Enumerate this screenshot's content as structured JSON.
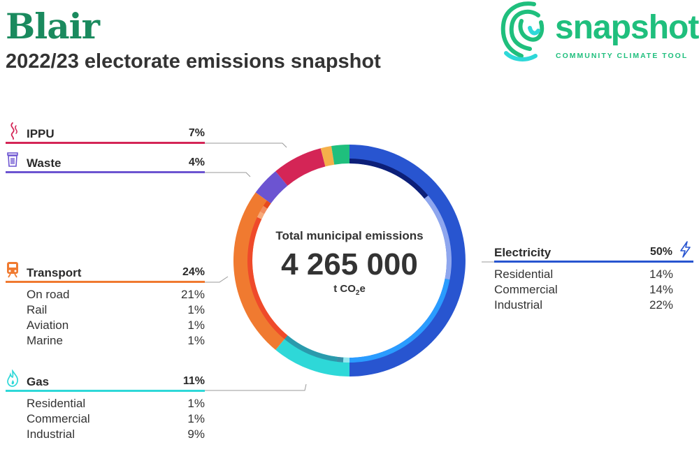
{
  "header": {
    "title": "Blair",
    "subtitle": "2022/23 electorate emissions snapshot"
  },
  "logo": {
    "wordmark": "snapshot",
    "tagline": "COMMUNITY CLIMATE TOOL"
  },
  "center": {
    "label": "Total municipal emissions",
    "value": "4 265 000",
    "unit_prefix": "t CO",
    "unit_subscript": "2",
    "unit_suffix": "e"
  },
  "colors": {
    "brand": "#1fbf7d",
    "title": "#1a8a5e",
    "electricity": "#2855d0",
    "gas": "#2ed8d8",
    "transport": "#f07a30",
    "waste": "#6c54d1",
    "ippu": "#d42556",
    "agriculture": "#f5b04a",
    "other": "#1fbf7d"
  },
  "icons": {
    "ippu": "smoke-icon",
    "waste": "trash-bin-icon",
    "transport": "train-icon",
    "gas": "flame-icon",
    "electricity": "lightning-bolt-icon"
  },
  "chart_data": {
    "type": "donut",
    "total": 4265000,
    "unit": "t CO2e",
    "series": [
      {
        "name": "Electricity",
        "value_label": "50%",
        "percent": 50,
        "breakdown": [
          {
            "name": "Residential",
            "value_label": "14%",
            "percent": 14
          },
          {
            "name": "Commercial",
            "value_label": "14%",
            "percent": 14
          },
          {
            "name": "Industrial",
            "value_label": "22%",
            "percent": 22
          }
        ]
      },
      {
        "name": "Gas",
        "value_label": "11%",
        "percent": 11,
        "breakdown": [
          {
            "name": "Residential",
            "value_label": "1%",
            "percent": 1
          },
          {
            "name": "Commercial",
            "value_label": "1%",
            "percent": 1
          },
          {
            "name": "Industrial",
            "value_label": "9%",
            "percent": 9
          }
        ]
      },
      {
        "name": "Transport",
        "value_label": "24%",
        "percent": 24,
        "breakdown": [
          {
            "name": "On road",
            "value_label": "21%",
            "percent": 21
          },
          {
            "name": "Rail",
            "value_label": "1%",
            "percent": 1
          },
          {
            "name": "Aviation",
            "value_label": "1%",
            "percent": 1
          },
          {
            "name": "Marine",
            "value_label": "1%",
            "percent": 1
          }
        ]
      },
      {
        "name": "Waste",
        "value_label": "4%",
        "percent": 4,
        "breakdown": []
      },
      {
        "name": "IPPU",
        "value_label": "7%",
        "percent": 7,
        "breakdown": []
      },
      {
        "percent": 1.5,
        "breakdown": []
      },
      {
        "percent": 2.5,
        "breakdown": []
      }
    ]
  }
}
